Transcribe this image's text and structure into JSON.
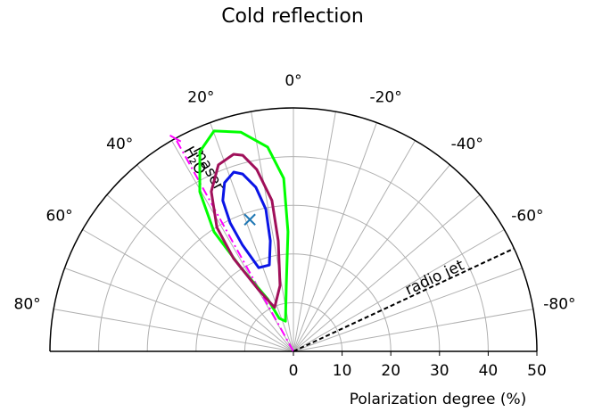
{
  "chart_data": {
    "type": "polar_half",
    "title": "Cold reflection",
    "rlabel": "Polarization degree (%)",
    "rlim": [
      0,
      50
    ],
    "rticks": [
      0,
      10,
      20,
      30,
      40,
      50
    ],
    "thetalim": [
      -90,
      90
    ],
    "thetaticks": [
      {
        "value": 80,
        "label": "80°"
      },
      {
        "value": 60,
        "label": "60°"
      },
      {
        "value": 40,
        "label": "40°"
      },
      {
        "value": 20,
        "label": "20°"
      },
      {
        "value": 0,
        "label": "0°"
      },
      {
        "value": -20,
        "label": "-20°"
      },
      {
        "value": -40,
        "label": "-40°"
      },
      {
        "value": -60,
        "label": "-60°"
      },
      {
        "value": -80,
        "label": "-80°"
      }
    ],
    "thetaminorticks": [
      70,
      50,
      30,
      10,
      -10,
      -30,
      -50,
      -70
    ],
    "grid": true,
    "series": [
      {
        "color": "#00ff00",
        "theta": [
          19.8,
          25.1,
          30.4,
          33.6,
          32.1,
          26.2,
          23.4,
          14.8,
          6.2,
          2.6,
          3.2,
          7.2,
          13.5
        ],
        "r": [
          48.1,
          45.3,
          38.0,
          29.5,
          20.3,
          12.0,
          7.4,
          6.4,
          13.6,
          24.6,
          35.6,
          42.3,
          46.3
        ]
      },
      {
        "color": "#a0105a",
        "theta": [
          16.9,
          21.9,
          27.2,
          31.7,
          32.8,
          29.5,
          23.2,
          11.5,
          7.8,
          8.1,
          11.4,
          14.5
        ],
        "r": [
          42.3,
          41.3,
          36.9,
          29.9,
          22.7,
          14.5,
          9.8,
          13.8,
          22.9,
          31.3,
          38.1,
          41.6
        ]
      },
      {
        "color": "#0a14e6",
        "theta": [
          18.4,
          22.2,
          25.1,
          26.2,
          25.6,
          22.5,
          15.6,
          11.8,
          11.0,
          12.9,
          16.0
        ],
        "r": [
          38.8,
          37.4,
          34.2,
          29.4,
          24.2,
          18.6,
          18.4,
          23.2,
          29.7,
          34.6,
          37.9
        ]
      }
    ],
    "marker": {
      "color": "#1f77b4",
      "theta": 18.3,
      "r": 28.5
    },
    "annotations": [
      {
        "text": [
          "H₂O",
          "maser"
        ],
        "theta": 29,
        "color": "#ff00ff",
        "style": "dashdot"
      },
      {
        "text": [
          "radio jet"
        ],
        "theta": -65,
        "color": "#000000",
        "style": "dashed"
      }
    ]
  }
}
